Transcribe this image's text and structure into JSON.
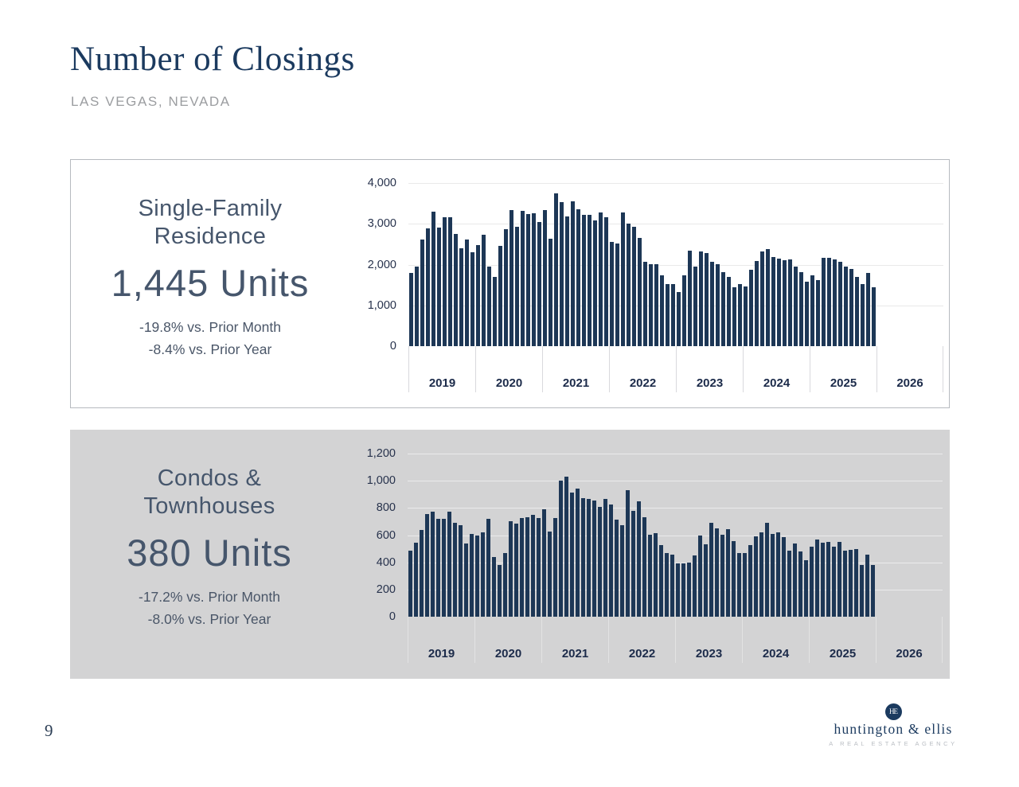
{
  "header": {
    "title": "Number of Closings",
    "subtitle": "LAS VEGAS, NEVADA"
  },
  "chart_data": [
    {
      "type": "bar",
      "title": "Single-Family Residence",
      "title_line1": "Single-Family",
      "title_line2": "Residence",
      "units_label": "1,445 Units",
      "current_value": 1445,
      "vs_prior_month": "-19.8% vs. Prior Month",
      "vs_prior_year": "-8.4% vs. Prior Year",
      "granularity": "monthly",
      "start": "2019-01",
      "x_years": [
        "2019",
        "2020",
        "2021",
        "2022",
        "2023",
        "2024",
        "2025",
        "2026"
      ],
      "ylim": [
        0,
        4000
      ],
      "ytick_values": [
        0,
        1000,
        2000,
        3000,
        4000
      ],
      "ytick_labels": [
        "0",
        "1,000",
        "2,000",
        "3,000",
        "4,000"
      ],
      "grid": true,
      "legend": false,
      "bar_color": "#1d3756",
      "series": [
        {
          "name": "Single-family closings per month",
          "values": [
            1800,
            1950,
            2620,
            2880,
            3290,
            2910,
            3160,
            3170,
            2760,
            2400,
            2620,
            2300,
            2480,
            2740,
            1950,
            1700,
            2460,
            2870,
            3340,
            2920,
            3320,
            3230,
            3260,
            3050,
            3330,
            2630,
            3750,
            3540,
            3180,
            3560,
            3360,
            3210,
            3210,
            3090,
            3270,
            3170,
            2560,
            2520,
            3270,
            3000,
            2930,
            2660,
            2060,
            2010,
            2010,
            1730,
            1530,
            1530,
            1330,
            1730,
            2350,
            1950,
            2320,
            2290,
            2060,
            2010,
            1810,
            1700,
            1440,
            1520,
            1470,
            1880,
            2080,
            2330,
            2380,
            2180,
            2150,
            2110,
            2130,
            1960,
            1810,
            1580,
            1740,
            1620,
            2160,
            2170,
            2120,
            2060,
            1950,
            1900,
            1700,
            1520,
            1800,
            1445
          ]
        }
      ]
    },
    {
      "type": "bar",
      "title": "Condos & Townhouses",
      "title_line1": "Condos &",
      "title_line2": "Townhouses",
      "units_label": "380 Units",
      "current_value": 380,
      "vs_prior_month": "-17.2% vs. Prior Month",
      "vs_prior_year": "-8.0% vs. Prior Year",
      "granularity": "monthly",
      "start": "2019-01",
      "x_years": [
        "2019",
        "2020",
        "2021",
        "2022",
        "2023",
        "2024",
        "2025",
        "2026"
      ],
      "ylim": [
        0,
        1200
      ],
      "ytick_values": [
        0,
        200,
        400,
        600,
        800,
        1000,
        1200
      ],
      "ytick_labels": [
        "0",
        "200",
        "400",
        "600",
        "800",
        "1,000",
        "1,200"
      ],
      "grid": true,
      "legend": false,
      "bar_color": "#1d3756",
      "series": [
        {
          "name": "Condo & townhouse closings per month",
          "values": [
            485,
            545,
            640,
            757,
            770,
            722,
            722,
            773,
            689,
            674,
            540,
            608,
            598,
            621,
            718,
            441,
            379,
            466,
            705,
            683,
            728,
            732,
            748,
            728,
            792,
            625,
            724,
            1000,
            1033,
            915,
            945,
            875,
            865,
            855,
            805,
            865,
            825,
            713,
            674,
            932,
            780,
            850,
            732,
            602,
            612,
            524,
            466,
            456,
            392,
            392,
            398,
            450,
            598,
            534,
            689,
            647,
            602,
            641,
            557,
            470,
            466,
            528,
            592,
            621,
            693,
            606,
            621,
            583,
            485,
            540,
            480,
            413,
            515,
            569,
            544,
            553,
            515,
            548,
            485,
            490,
            495,
            383,
            459,
            380
          ]
        }
      ]
    }
  ],
  "footer": {
    "page_number": "9",
    "logo_monogram": "HE",
    "logo_text": "huntington & ellis",
    "logo_tagline": "A REAL ESTATE AGENCY"
  }
}
